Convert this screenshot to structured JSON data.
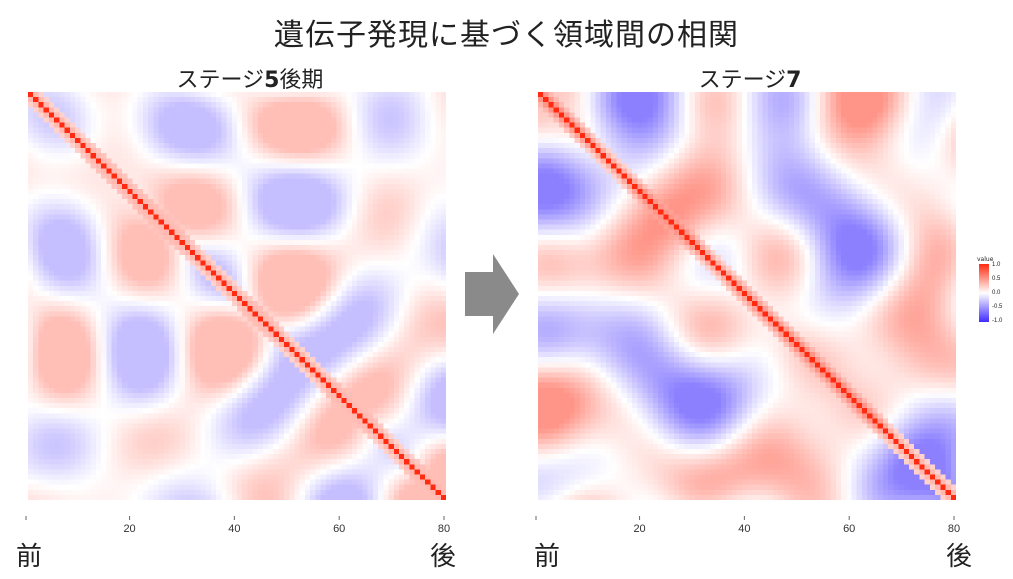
{
  "title": "遺伝子発現に基づく領域間の相関",
  "panels": [
    {
      "subtitle_prefix": "ステージ",
      "subtitle_bold": "5",
      "subtitle_suffix": "後期"
    },
    {
      "subtitle_prefix": "ステージ",
      "subtitle_bold": "7",
      "subtitle_suffix": ""
    }
  ],
  "x_end_labels": {
    "start": "前",
    "end": "後"
  },
  "legend": {
    "title": "value",
    "ticks": [
      "1.0",
      "0.5",
      "0.0",
      "-0.5",
      "-1.0"
    ]
  },
  "colors": {
    "positive": "#ff2a10",
    "neutral": "#ffffff",
    "negative": "#3f2bff",
    "arrow": "#8a8a8a"
  },
  "chart_data": [
    {
      "type": "heatmap",
      "title": "ステージ5後期",
      "x_ticks": [
        20,
        40,
        60,
        80
      ],
      "xlim": [
        1,
        80
      ],
      "value_range": [
        -1,
        1
      ],
      "diagonal_value": 1.0,
      "off_diagonal_range": [
        -0.3,
        0.3
      ]
    },
    {
      "type": "heatmap",
      "title": "ステージ7",
      "x_ticks": [
        20,
        40,
        60,
        80
      ],
      "xlim": [
        1,
        80
      ],
      "value_range": [
        -1,
        1
      ],
      "diagonal_value": 1.0,
      "off_diagonal_range": [
        -0.6,
        0.5
      ]
    }
  ]
}
